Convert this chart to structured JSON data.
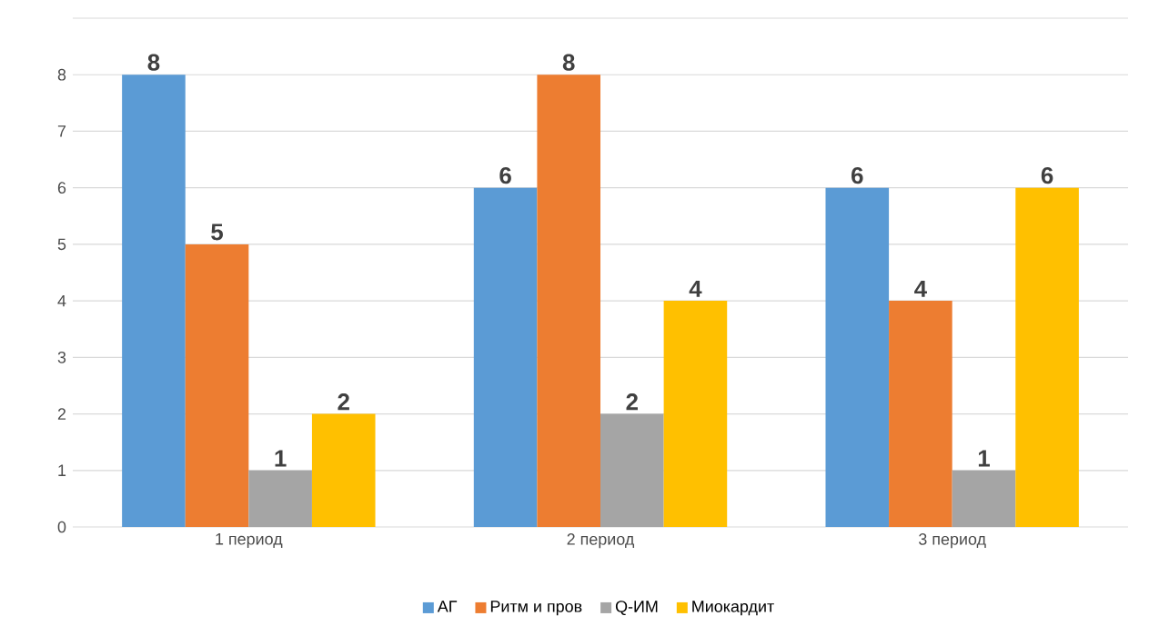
{
  "chart_data": {
    "type": "bar",
    "categories": [
      "1 период",
      "2 период",
      "3 период"
    ],
    "series": [
      {
        "name": "АГ",
        "color": "#5b9bd5",
        "values": [
          8,
          6,
          6
        ]
      },
      {
        "name": "Ритм и пров",
        "color": "#ed7d31",
        "values": [
          5,
          8,
          4
        ]
      },
      {
        "name": "Q-ИМ",
        "color": "#a5a5a5",
        "values": [
          1,
          2,
          1
        ]
      },
      {
        "name": "Миокардит",
        "color": "#ffc000",
        "values": [
          2,
          4,
          6
        ]
      }
    ],
    "ylim": [
      0,
      9
    ],
    "yticks": [
      0,
      1,
      2,
      3,
      4,
      5,
      6,
      7,
      8,
      {
        "value": 9,
        "label": null
      }
    ],
    "grid": "y",
    "legend": "bottom",
    "data_labels": true
  }
}
